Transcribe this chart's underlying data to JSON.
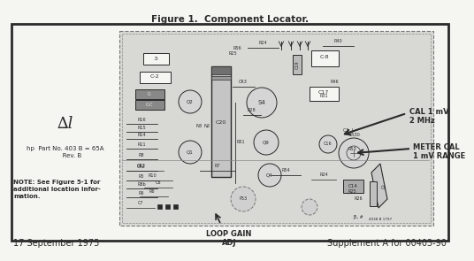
{
  "title": "Figure 1.  Component Locator.",
  "footer_left": "17 September 1975",
  "footer_right": "Supplement A for 00403-90",
  "cal_label": "CAL 1 mV\n2 MHz",
  "meter_cal_label": "METER CAL\n1 mV RANGE",
  "loop_gain_label": "LOOP GAIN\nADJ",
  "label_A1": "∆l",
  "label_hp": "hp  Part No. 403 B = 65A\n       Rev. B",
  "note_text": "NOTE: See Figure 5-1 for\nadditional location infor-\nmation.",
  "bg": "#c8c8c8",
  "white": "#f5f5f2",
  "dark": "#2a2a2a",
  "gray_box": "#b0b0b0",
  "mid_gray": "#909090"
}
